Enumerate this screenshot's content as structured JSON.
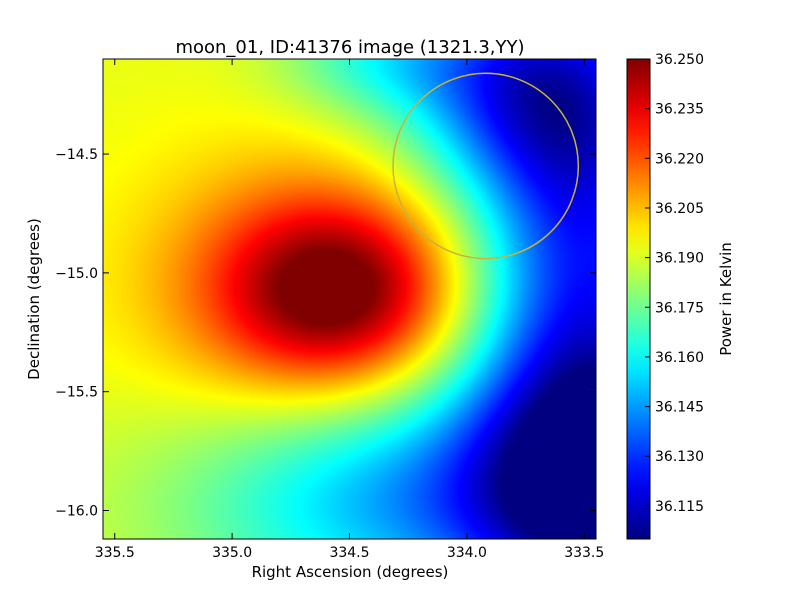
{
  "chart_data": {
    "type": "heatmap",
    "title": "moon_01, ID:41376 image (1321.3,YY)",
    "xlabel": "Right Ascension (degrees)",
    "ylabel": "Declination (degrees)",
    "xlim": [
      335.55,
      333.45
    ],
    "ylim": [
      -16.12,
      -14.1
    ],
    "x_ticks": [
      {
        "value": 335.5,
        "label": "335.5"
      },
      {
        "value": 335.0,
        "label": "335.0"
      },
      {
        "value": 334.5,
        "label": "334.5"
      },
      {
        "value": 334.0,
        "label": "334.0"
      },
      {
        "value": 333.5,
        "label": "333.5"
      }
    ],
    "y_ticks": [
      {
        "value": -14.5,
        "label": "−14.5"
      },
      {
        "value": -15.0,
        "label": "−15.0"
      },
      {
        "value": -15.5,
        "label": "−15.5"
      },
      {
        "value": -16.0,
        "label": "−16.0"
      }
    ],
    "colorbar": {
      "label": "Power in Kelvin",
      "range": [
        36.105,
        36.25
      ],
      "colormap": "jet",
      "ticks": [
        {
          "value": 36.25,
          "label": "36.250"
        },
        {
          "value": 36.235,
          "label": "36.235"
        },
        {
          "value": 36.22,
          "label": "36.220"
        },
        {
          "value": 36.205,
          "label": "36.205"
        },
        {
          "value": 36.19,
          "label": "36.190"
        },
        {
          "value": 36.175,
          "label": "36.175"
        },
        {
          "value": 36.16,
          "label": "36.160"
        },
        {
          "value": 36.145,
          "label": "36.145"
        },
        {
          "value": 36.13,
          "label": "36.130"
        },
        {
          "value": 36.115,
          "label": "36.115"
        }
      ]
    },
    "overlay_circle": {
      "ra": 333.92,
      "dec": -14.55,
      "radius_deg": 0.39,
      "color": "#c8b43a"
    },
    "field": {
      "background": 36.192,
      "features": [
        {
          "kind": "peak",
          "ra": 334.55,
          "dec": -15.08,
          "amplitude": 0.058,
          "sigma_ra": 0.36,
          "sigma_dec": 0.28
        },
        {
          "kind": "peak",
          "ra": 334.85,
          "dec": -15.05,
          "amplitude": 0.014,
          "sigma_ra": 0.5,
          "sigma_dec": 0.45
        },
        {
          "kind": "trough",
          "ra": 333.45,
          "dec": -15.8,
          "amplitude": -0.082,
          "sigma_ra": 0.38,
          "sigma_dec": 0.5
        },
        {
          "kind": "trough",
          "ra": 333.5,
          "dec": -14.6,
          "amplitude": -0.058,
          "sigma_ra": 0.35,
          "sigma_dec": 0.55
        },
        {
          "kind": "trough",
          "ra": 333.8,
          "dec": -14.2,
          "amplitude": -0.045,
          "sigma_ra": 0.38,
          "sigma_dec": 0.3
        },
        {
          "kind": "trough",
          "ra": 334.2,
          "dec": -15.95,
          "amplitude": -0.045,
          "sigma_ra": 0.7,
          "sigma_dec": 0.35
        },
        {
          "kind": "trough",
          "ra": 334.4,
          "dec": -14.1,
          "amplitude": -0.02,
          "sigma_ra": 0.3,
          "sigma_dec": 0.16
        }
      ]
    }
  }
}
